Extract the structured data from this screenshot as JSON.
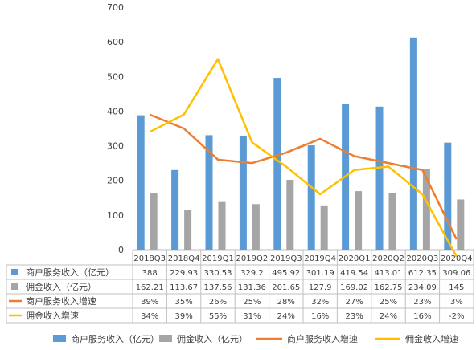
{
  "chart_data": {
    "type": "bar",
    "categories": [
      "2018Q3",
      "2018Q4",
      "2019Q1",
      "2019Q2",
      "2019Q3",
      "2019Q4",
      "2020Q1",
      "2020Q2",
      "2020Q3",
      "2020Q4"
    ],
    "ylim": [
      0,
      700
    ],
    "yticks": [
      0,
      100,
      200,
      300,
      400,
      500,
      600,
      700
    ],
    "grid": false,
    "legend_position": "bottom",
    "series": [
      {
        "name": "商户服务收入（亿元）",
        "kind": "bar",
        "color": "#5B9BD5",
        "values": [
          388,
          229.93,
          330.53,
          329.2,
          495.92,
          301.19,
          419.54,
          413.01,
          612.35,
          309.06
        ],
        "labels": [
          "388",
          "229.93",
          "330.53",
          "329.2",
          "495.92",
          "301.19",
          "419.54",
          "413.01",
          "612.35",
          "309.06"
        ]
      },
      {
        "name": "佣金收入（亿元）",
        "kind": "bar",
        "color": "#A5A5A5",
        "values": [
          162.21,
          113.67,
          137.56,
          131.36,
          201.65,
          127.9,
          169.02,
          162.75,
          234.09,
          145
        ],
        "labels": [
          "162.21",
          "113.67",
          "137.56",
          "131.36",
          "201.65",
          "127.9",
          "169.02",
          "162.75",
          "234.09",
          "145"
        ]
      },
      {
        "name": "商户服务收入增速",
        "kind": "line",
        "color": "#ED7D31",
        "values": [
          39,
          35,
          26,
          25,
          28,
          32,
          27,
          25,
          23,
          3
        ],
        "labels": [
          "39%",
          "35%",
          "26%",
          "25%",
          "28%",
          "32%",
          "27%",
          "25%",
          "23%",
          "3%"
        ]
      },
      {
        "name": "佣金收入增速",
        "kind": "line",
        "color": "#FFC000",
        "values": [
          34,
          39,
          55,
          31,
          24,
          16,
          23,
          24,
          16,
          -2
        ],
        "labels": [
          "34%",
          "39%",
          "55%",
          "31%",
          "24%",
          "16%",
          "23%",
          "24%",
          "16%",
          "-2%"
        ]
      }
    ]
  }
}
